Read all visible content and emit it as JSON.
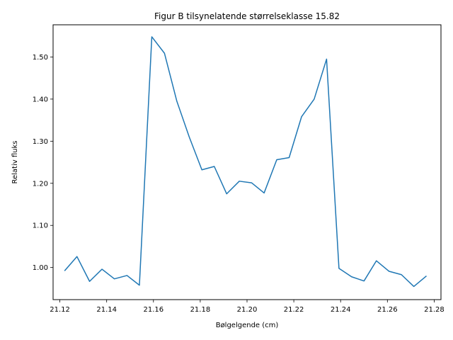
{
  "chart_data": {
    "type": "line",
    "title": "Figur B tilsynelatende størrelseklasse 15.82",
    "xlabel": "Bølgelgende (cm)",
    "ylabel": "Relativ fluks",
    "xlim": [
      21.1171,
      21.2829
    ],
    "ylim": [
      0.9237,
      1.5765
    ],
    "xticks": [
      21.12,
      21.14,
      21.16,
      21.18,
      21.2,
      21.22,
      21.24,
      21.26,
      21.28
    ],
    "xtick_labels": [
      "21.12",
      "21.14",
      "21.16",
      "21.18",
      "21.20",
      "21.22",
      "21.24",
      "21.26",
      "21.28"
    ],
    "yticks": [
      1.0,
      1.1,
      1.2,
      1.3,
      1.4,
      1.5
    ],
    "ytick_labels": [
      "1.00",
      "1.10",
      "1.20",
      "1.30",
      "1.40",
      "1.50"
    ],
    "grid": false,
    "series": [
      {
        "color": "#1f77b4",
        "x": [
          21.122,
          21.1273,
          21.1327,
          21.138,
          21.1433,
          21.1487,
          21.154,
          21.1593,
          21.1647,
          21.17,
          21.1753,
          21.1807,
          21.186,
          21.1913,
          21.1967,
          21.202,
          21.2073,
          21.2127,
          21.218,
          21.2233,
          21.2287,
          21.234,
          21.2393,
          21.2447,
          21.25,
          21.2553,
          21.2607,
          21.266,
          21.2713,
          21.2767
        ],
        "y": [
          0.992,
          1.026,
          0.967,
          0.996,
          0.973,
          0.981,
          0.958,
          1.548,
          1.509,
          1.395,
          1.31,
          1.232,
          1.24,
          1.175,
          1.205,
          1.201,
          1.177,
          1.256,
          1.261,
          1.358,
          1.4,
          1.495,
          0.998,
          0.978,
          0.968,
          1.016,
          0.991,
          0.983,
          0.955,
          0.98
        ]
      }
    ]
  }
}
